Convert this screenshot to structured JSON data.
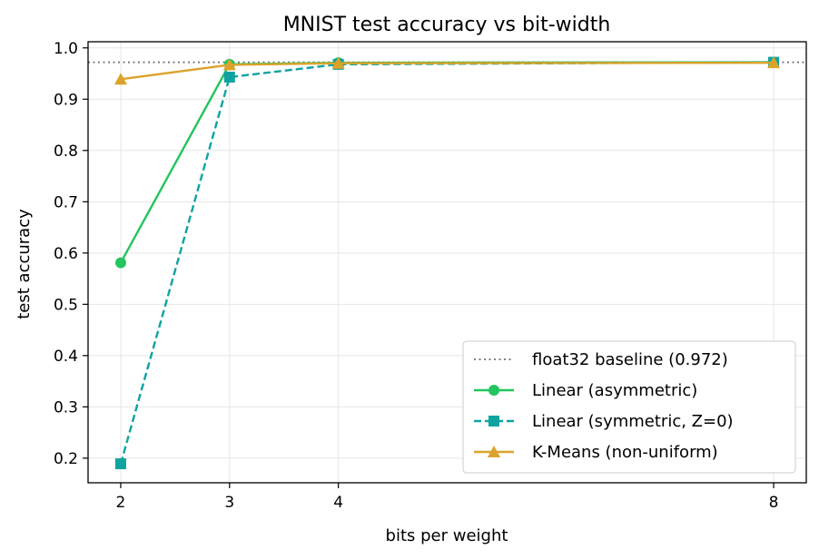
{
  "chart_data": {
    "type": "line",
    "title": "MNIST test accuracy vs bit-width",
    "xlabel": "bits per weight",
    "ylabel": "test accuracy",
    "xlim": [
      1.7,
      8.3
    ],
    "ylim": [
      0.152,
      1.012
    ],
    "x_ticks": [
      2,
      3,
      4,
      8
    ],
    "x_tick_labels": [
      "2",
      "3",
      "4",
      "8"
    ],
    "y_ticks": [
      0.2,
      0.3,
      0.4,
      0.5,
      0.6,
      0.7,
      0.8,
      0.9,
      1.0
    ],
    "y_tick_labels": [
      "0.2",
      "0.3",
      "0.4",
      "0.5",
      "0.6",
      "0.7",
      "0.8",
      "0.9",
      "1.0"
    ],
    "grid": true,
    "legend_position": "lower-right",
    "baseline": {
      "name": "float32 baseline (0.972)",
      "value": 0.972,
      "color": "#7f7f7f"
    },
    "series": [
      {
        "name": "Linear (asymmetric)",
        "color": "#22c55e",
        "marker": "circle",
        "style": "solid",
        "x": [
          2,
          3,
          4,
          8
        ],
        "values": [
          0.581,
          0.968,
          0.971,
          0.972
        ]
      },
      {
        "name": "Linear (symmetric, Z=0)",
        "color": "#0fa3a0",
        "marker": "square",
        "style": "dashed",
        "x": [
          2,
          3,
          4,
          8
        ],
        "values": [
          0.189,
          0.943,
          0.968,
          0.972
        ]
      },
      {
        "name": "K-Means (non-uniform)",
        "color": "#dca32a",
        "marker": "triangle",
        "style": "solid",
        "x": [
          2,
          3,
          4,
          8
        ],
        "values": [
          0.939,
          0.967,
          0.97,
          0.971
        ]
      }
    ]
  }
}
